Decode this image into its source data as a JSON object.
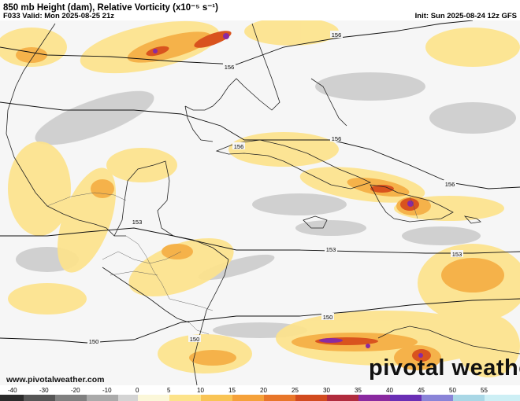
{
  "header": {
    "title": "850 mb Height (dam), Relative Vorticity (x10⁻⁵ s⁻¹)",
    "valid": "F033 Valid: Mon 2025-08-25 21z",
    "init": "Init: Sun 2025-08-24 12z GFS"
  },
  "footer": {
    "url": "www.pivotalweather.com",
    "brand": "pivotal weather"
  },
  "contours": [
    {
      "label": "156"
    },
    {
      "label": "156"
    },
    {
      "label": "156"
    },
    {
      "label": "156"
    },
    {
      "label": "156"
    },
    {
      "label": "153"
    },
    {
      "label": "153"
    },
    {
      "label": "153"
    },
    {
      "label": "150"
    },
    {
      "label": "150"
    },
    {
      "label": "150"
    }
  ],
  "colorbar": {
    "ticks": [
      "-40",
      "-30",
      "-20",
      "-10",
      "0",
      "5",
      "10",
      "15",
      "20",
      "25",
      "30",
      "35",
      "40",
      "45",
      "50",
      "55"
    ]
  },
  "colors": {
    "land": "#ffffff",
    "ocean": "#f4f4f4",
    "gray": "#c7c7c7",
    "yellow": "#fde38a",
    "orange": "#f5b24a",
    "red": "#d9531e",
    "purple": "#8a2aa0"
  }
}
